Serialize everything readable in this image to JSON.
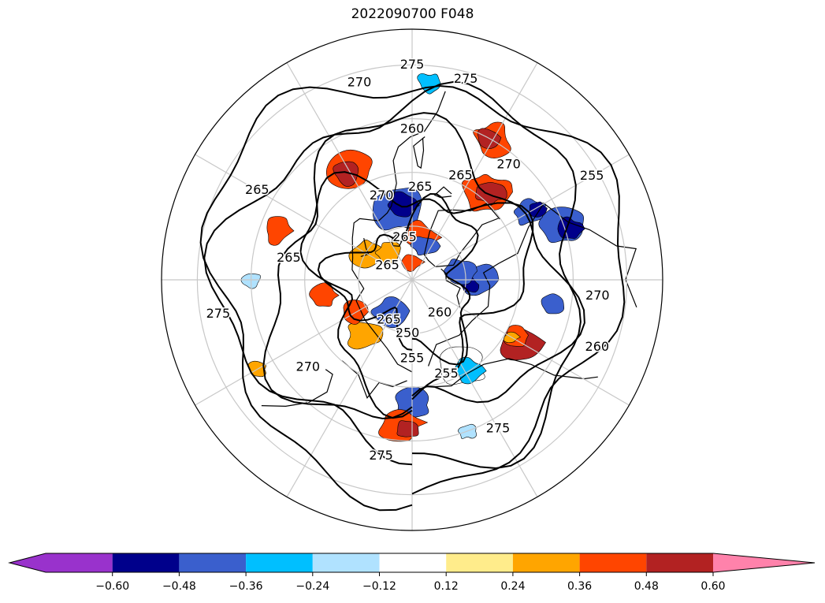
{
  "chart_data": {
    "type": "heatmap",
    "title": "2022090700 F048",
    "projection": "north-polar-stereographic",
    "colorbar": {
      "orientation": "horizontal",
      "extend": "both",
      "levels": [
        -0.6,
        -0.48,
        -0.36,
        -0.24,
        -0.12,
        0.12,
        0.24,
        0.36,
        0.48,
        0.6
      ],
      "tick_labels": [
        "−0.60",
        "−0.48",
        "−0.36",
        "−0.24",
        "−0.12",
        "0.12",
        "0.24",
        "0.36",
        "0.48",
        "0.60"
      ],
      "colors": [
        "#9932cc",
        "#00008b",
        "#3a5fcd",
        "#00bfff",
        "#b0e2ff",
        "#ffffff",
        "#ffec8b",
        "#ffa500",
        "#ff4500",
        "#b22222",
        "#ff82ab"
      ]
    },
    "contour_labels": [
      {
        "text": "275",
        "lon": -150,
        "lat": 42
      },
      {
        "text": "275",
        "lon": 170,
        "lat": 40
      },
      {
        "text": "270",
        "lon": 130,
        "lat": 52
      },
      {
        "text": "260",
        "lon": -110,
        "lat": 35
      },
      {
        "text": "270",
        "lon": -95,
        "lat": 38
      },
      {
        "text": "255",
        "lon": -160,
        "lat": 62
      },
      {
        "text": "250",
        "lon": 175,
        "lat": 75
      },
      {
        "text": "255",
        "lon": 180,
        "lat": 68
      },
      {
        "text": "265",
        "lon": 150,
        "lat": 77
      },
      {
        "text": "260",
        "lon": -140,
        "lat": 78
      },
      {
        "text": "265",
        "lon": 60,
        "lat": 82
      },
      {
        "text": "265",
        "lon": 80,
        "lat": 55
      },
      {
        "text": "265",
        "lon": 60,
        "lat": 40
      },
      {
        "text": "265",
        "lon": 10,
        "lat": 78
      },
      {
        "text": "270",
        "lon": 20,
        "lat": 65
      },
      {
        "text": "265",
        "lon": -5,
        "lat": 64
      },
      {
        "text": "265",
        "lon": -25,
        "lat": 58
      },
      {
        "text": "270",
        "lon": -40,
        "lat": 48
      },
      {
        "text": "255",
        "lon": -60,
        "lat": 32
      },
      {
        "text": "260",
        "lon": 0,
        "lat": 48
      },
      {
        "text": "275",
        "lon": -15,
        "lat": 32
      },
      {
        "text": "275",
        "lon": 0,
        "lat": 30
      },
      {
        "text": "270",
        "lon": 15,
        "lat": 33
      },
      {
        "text": "275",
        "lon": 100,
        "lat": 35
      }
    ],
    "contour_interval": 5,
    "grid": true,
    "legend": "colorbar-bottom"
  }
}
